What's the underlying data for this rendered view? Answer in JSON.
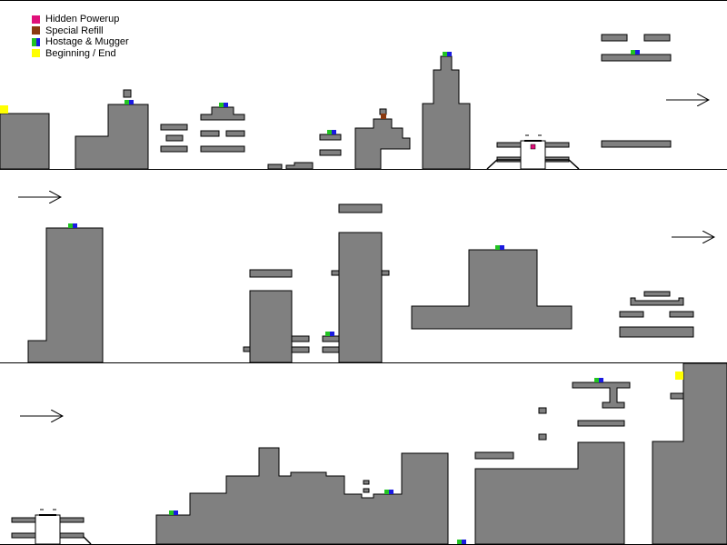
{
  "legend": {
    "items": [
      {
        "label": "Hidden Powerup",
        "color": "#e0107a"
      },
      {
        "label": "Special Refill",
        "color": "#8b3a10"
      },
      {
        "label": "Hostage & Mugger",
        "colors": [
          "#22c422",
          "#1a1ae0"
        ]
      },
      {
        "label": "Beginning / End",
        "color": "#ffff00"
      }
    ]
  },
  "colors": {
    "terrain": "#808080",
    "outline": "#000000",
    "background": "#ffffff",
    "hostage": "#22c422",
    "mugger": "#1a1ae0",
    "powerup": "#e0107a",
    "refill": "#8b3a10",
    "start_end": "#ffff00"
  },
  "icons": {
    "direction": "right-arrow-icon"
  }
}
